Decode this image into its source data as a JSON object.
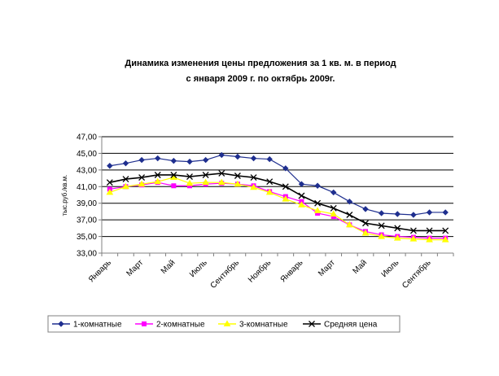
{
  "chart_data": {
    "type": "line",
    "title_line1": "Динамика изменения цены предложения за 1 кв. м. в период",
    "title_line2": "с  января 2009 г. по октябрь  2009г.",
    "ylabel": "тыс.руб./кв.м.",
    "xlabel": "",
    "ylim": [
      33,
      47
    ],
    "yticks": [
      "33,00",
      "35,00",
      "37,00",
      "39,00",
      "41,00",
      "43,00",
      "45,00",
      "47,00"
    ],
    "x_tick_labels": [
      "Январь",
      "Март",
      "Май",
      "Июль",
      "Сентябрь",
      "Ноябрь",
      "Январь",
      "Март",
      "Май",
      "Июль",
      "Сентябрь"
    ],
    "grid": true,
    "legend_position": "bottom",
    "series": [
      {
        "name": "1-комнатные",
        "color": "#1f2f8f",
        "marker": "diamond",
        "values": [
          43.5,
          43.8,
          44.2,
          44.4,
          44.1,
          44.0,
          44.2,
          44.8,
          44.6,
          44.4,
          44.3,
          43.2,
          41.3,
          41.1,
          40.3,
          39.2,
          38.3,
          37.8,
          37.7,
          37.6,
          37.9,
          37.9
        ]
      },
      {
        "name": "2-комнатные",
        "color": "#ff00ff",
        "marker": "square",
        "values": [
          40.7,
          41.0,
          41.2,
          41.5,
          41.1,
          41.1,
          41.3,
          41.4,
          41.3,
          41.1,
          40.4,
          39.8,
          39.2,
          37.8,
          37.4,
          36.4,
          35.6,
          35.2,
          35.0,
          34.9,
          34.8,
          34.8
        ]
      },
      {
        "name": "3-комнатные",
        "color": "#ffff00",
        "marker": "triangle",
        "values": [
          40.3,
          41.0,
          41.3,
          41.6,
          42.1,
          41.4,
          41.5,
          41.5,
          41.3,
          40.9,
          40.3,
          39.5,
          38.8,
          38.1,
          37.7,
          36.4,
          35.4,
          35.0,
          34.8,
          34.7,
          34.6,
          34.6
        ]
      },
      {
        "name": "Средняя цена",
        "color": "#000000",
        "marker": "x",
        "values": [
          41.5,
          41.9,
          42.1,
          42.4,
          42.4,
          42.2,
          42.4,
          42.6,
          42.3,
          42.1,
          41.6,
          41.0,
          39.9,
          39.0,
          38.4,
          37.6,
          36.6,
          36.3,
          36.0,
          35.7,
          35.7,
          35.7
        ]
      }
    ]
  }
}
